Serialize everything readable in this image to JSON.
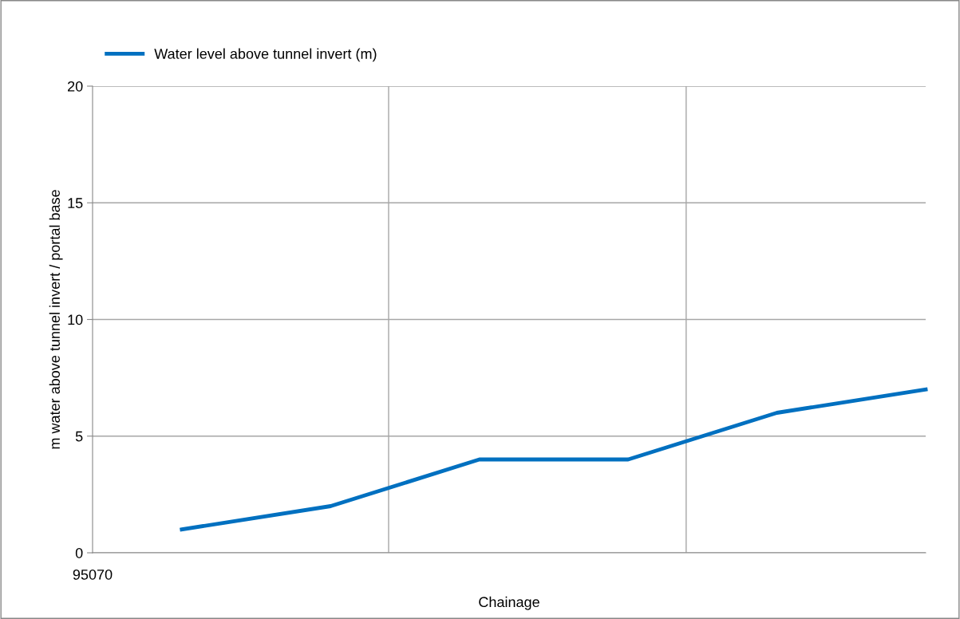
{
  "chart_data": {
    "type": "line",
    "xlabel": "Chainage",
    "ylabel": "m water above tunnel invert / portal base",
    "categories": [
      null,
      null,
      null,
      null,
      null,
      null
    ],
    "series": [
      {
        "name": "Water level above tunnel invert (m)",
        "color": "#0070c0",
        "values": [
          1,
          2,
          4,
          4,
          6,
          7
        ]
      }
    ],
    "annotations": [
      "95070"
    ],
    "ylim": [
      0,
      20
    ],
    "yticks": [
      0,
      5,
      10,
      15,
      20
    ],
    "grid": true,
    "legend": "top left",
    "marker": "none",
    "line_style": "solid"
  }
}
